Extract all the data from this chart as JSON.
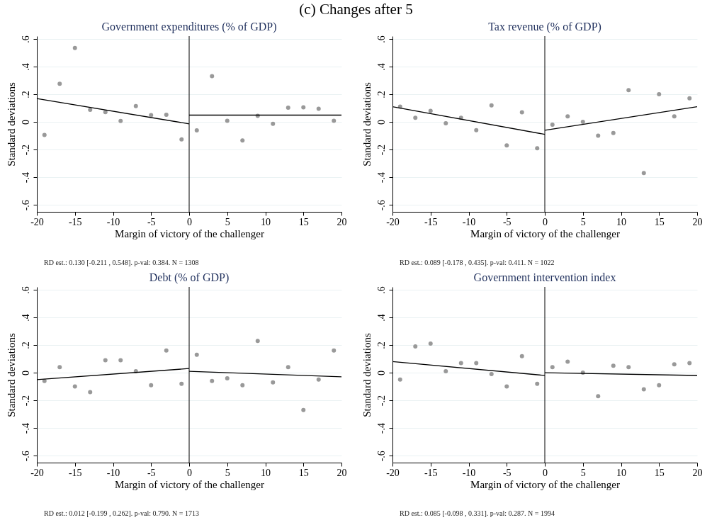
{
  "chart_data": [
    {
      "type": "other",
      "title": "(c) Changes after 5"
    },
    {
      "type": "scatter",
      "title": "Government expenditures (% of GDP)",
      "xlabel": "Margin of victory of the challenger",
      "ylabel": "Standard deviations",
      "annotations": [
        "RD est.: 0.130 [-0.211 , 0.548]. p-val: 0.384. N = 1308"
      ],
      "x": [
        -19,
        -17,
        -15,
        -13,
        -11,
        -9,
        -7,
        -5,
        -3,
        -1,
        1,
        3,
        5,
        7,
        9,
        11,
        13,
        15,
        17,
        19
      ],
      "series": [
        {
          "type": "scatter",
          "marker": "circle",
          "color": "#999999",
          "values": [
            -0.095,
            0.275,
            0.534,
            0.088,
            0.071,
            0.007,
            0.114,
            0.049,
            0.051,
            -0.127,
            -0.061,
            0.331,
            0.008,
            -0.134,
            0.044,
            -0.014,
            0.103,
            0.105,
            0.095,
            0.008
          ]
        },
        {
          "type": "line",
          "color": "#000000",
          "x": [
            -20,
            0
          ],
          "values": [
            0.169,
            -0.014
          ]
        },
        {
          "type": "line",
          "color": "#000000",
          "x": [
            0,
            20
          ],
          "values": [
            0.049,
            0.049
          ]
        }
      ],
      "xlim": [
        -20,
        20
      ],
      "xticks": [
        -20,
        -15,
        -10,
        -5,
        0,
        5,
        10,
        15,
        20
      ],
      "ylim": [
        -0.65,
        0.62
      ],
      "yticks": [
        {
          "value": -0.6,
          "label": "-.6"
        },
        {
          "value": -0.4,
          "label": "-.4"
        },
        {
          "value": -0.2,
          "label": "-.2"
        },
        {
          "value": 0,
          "label": "0"
        },
        {
          "value": 0.2,
          "label": ".2"
        },
        {
          "value": 0.4,
          "label": ".4"
        },
        {
          "value": 0.6,
          "label": ".6"
        }
      ],
      "ref_lines": [
        {
          "axis": "x",
          "value": 0,
          "color": "#000000"
        }
      ],
      "grid": "y"
    },
    {
      "type": "scatter",
      "title": "Tax revenue (% of GDP)",
      "xlabel": "Margin of victory of the challenger",
      "ylabel": "Standard deviations",
      "annotations": [
        "RD est.: 0.089 [-0.178 , 0.435]. p-val: 0.411. N = 1022"
      ],
      "x": [
        -19,
        -17,
        -15,
        -13,
        -11,
        -9,
        -7,
        -5,
        -3,
        -1,
        1,
        3,
        5,
        7,
        9,
        11,
        13,
        15,
        17,
        19
      ],
      "series": [
        {
          "type": "scatter",
          "marker": "circle",
          "color": "#999999",
          "values": [
            0.11,
            0.03,
            0.08,
            -0.01,
            0.03,
            -0.06,
            0.12,
            -0.17,
            0.07,
            -0.19,
            -0.02,
            0.04,
            0,
            -0.1,
            -0.08,
            0.23,
            -0.37,
            0.2,
            0.04,
            0.17
          ]
        },
        {
          "type": "line",
          "color": "#000000",
          "x": [
            -20,
            0
          ],
          "values": [
            0.11,
            -0.09
          ]
        },
        {
          "type": "line",
          "color": "#000000",
          "x": [
            0,
            20
          ],
          "values": [
            -0.06,
            0.11
          ]
        }
      ],
      "xlim": [
        -20,
        20
      ],
      "xticks": [
        -20,
        -15,
        -10,
        -5,
        0,
        5,
        10,
        15,
        20
      ],
      "ylim": [
        -0.65,
        0.62
      ],
      "yticks": [
        {
          "value": -0.6,
          "label": "-.6"
        },
        {
          "value": -0.4,
          "label": "-.4"
        },
        {
          "value": -0.2,
          "label": "-.2"
        },
        {
          "value": 0,
          "label": "0"
        },
        {
          "value": 0.2,
          "label": ".2"
        },
        {
          "value": 0.4,
          "label": ".4"
        },
        {
          "value": 0.6,
          "label": ".6"
        }
      ],
      "ref_lines": [
        {
          "axis": "x",
          "value": 0,
          "color": "#000000"
        }
      ],
      "grid": "y"
    },
    {
      "type": "scatter",
      "title": "Debt (% of GDP)",
      "xlabel": "Margin of victory of the challenger",
      "ylabel": "Standard deviations",
      "annotations": [
        "RD est.: 0.012 [-0.199 , 0.262]. p-val: 0.790. N = 1713"
      ],
      "x": [
        -19,
        -17,
        -15,
        -13,
        -11,
        -9,
        -7,
        -5,
        -3,
        -1,
        1,
        3,
        5,
        7,
        9,
        11,
        13,
        15,
        17,
        19
      ],
      "series": [
        {
          "type": "scatter",
          "marker": "circle",
          "color": "#999999",
          "values": [
            -0.06,
            0.04,
            -0.1,
            -0.14,
            0.09,
            0.09,
            0.01,
            -0.09,
            0.16,
            -0.08,
            0.13,
            -0.06,
            -0.04,
            -0.09,
            0.23,
            -0.07,
            0.04,
            -0.27,
            -0.05,
            0.16
          ]
        },
        {
          "type": "line",
          "color": "#000000",
          "x": [
            -20,
            0
          ],
          "values": [
            -0.05,
            0.03
          ]
        },
        {
          "type": "line",
          "color": "#000000",
          "x": [
            0,
            20
          ],
          "values": [
            0.01,
            -0.03
          ]
        }
      ],
      "xlim": [
        -20,
        20
      ],
      "xticks": [
        -20,
        -15,
        -10,
        -5,
        0,
        5,
        10,
        15,
        20
      ],
      "ylim": [
        -0.65,
        0.62
      ],
      "yticks": [
        {
          "value": -0.6,
          "label": "-.6"
        },
        {
          "value": -0.4,
          "label": "-.4"
        },
        {
          "value": -0.2,
          "label": "-.2"
        },
        {
          "value": 0,
          "label": "0"
        },
        {
          "value": 0.2,
          "label": ".2"
        },
        {
          "value": 0.4,
          "label": ".4"
        },
        {
          "value": 0.6,
          "label": ".6"
        }
      ],
      "ref_lines": [
        {
          "axis": "x",
          "value": 0,
          "color": "#000000"
        }
      ],
      "grid": "y"
    },
    {
      "type": "scatter",
      "title": "Government intervention index",
      "xlabel": "Margin of victory of the challenger",
      "ylabel": "Standard deviations",
      "annotations": [
        "RD est.: 0.085 [-0.098 , 0.331]. p-val: 0.287. N = 1994"
      ],
      "x": [
        -19,
        -17,
        -15,
        -13,
        -11,
        -9,
        -7,
        -5,
        -3,
        -1,
        1,
        3,
        5,
        7,
        9,
        11,
        13,
        15,
        17,
        19
      ],
      "series": [
        {
          "type": "scatter",
          "marker": "circle",
          "color": "#999999",
          "values": [
            -0.05,
            0.19,
            0.21,
            0.01,
            0.07,
            0.07,
            -0.01,
            -0.1,
            0.12,
            -0.08,
            0.04,
            0.08,
            0,
            -0.17,
            0.05,
            0.04,
            -0.12,
            -0.09,
            0.06,
            0.07
          ]
        },
        {
          "type": "line",
          "color": "#000000",
          "x": [
            -20,
            0
          ],
          "values": [
            0.08,
            -0.02
          ]
        },
        {
          "type": "line",
          "color": "#000000",
          "x": [
            0,
            20
          ],
          "values": [
            0.0,
            -0.02
          ]
        }
      ],
      "xlim": [
        -20,
        20
      ],
      "xticks": [
        -20,
        -15,
        -10,
        -5,
        0,
        5,
        10,
        15,
        20
      ],
      "ylim": [
        -0.65,
        0.62
      ],
      "yticks": [
        {
          "value": -0.6,
          "label": "-.6"
        },
        {
          "value": -0.4,
          "label": "-.4"
        },
        {
          "value": -0.2,
          "label": "-.2"
        },
        {
          "value": 0,
          "label": "0"
        },
        {
          "value": 0.2,
          "label": ".2"
        },
        {
          "value": 0.4,
          "label": ".4"
        },
        {
          "value": 0.6,
          "label": ".6"
        }
      ],
      "ref_lines": [
        {
          "axis": "x",
          "value": 0,
          "color": "#000000"
        }
      ],
      "grid": "y"
    }
  ]
}
